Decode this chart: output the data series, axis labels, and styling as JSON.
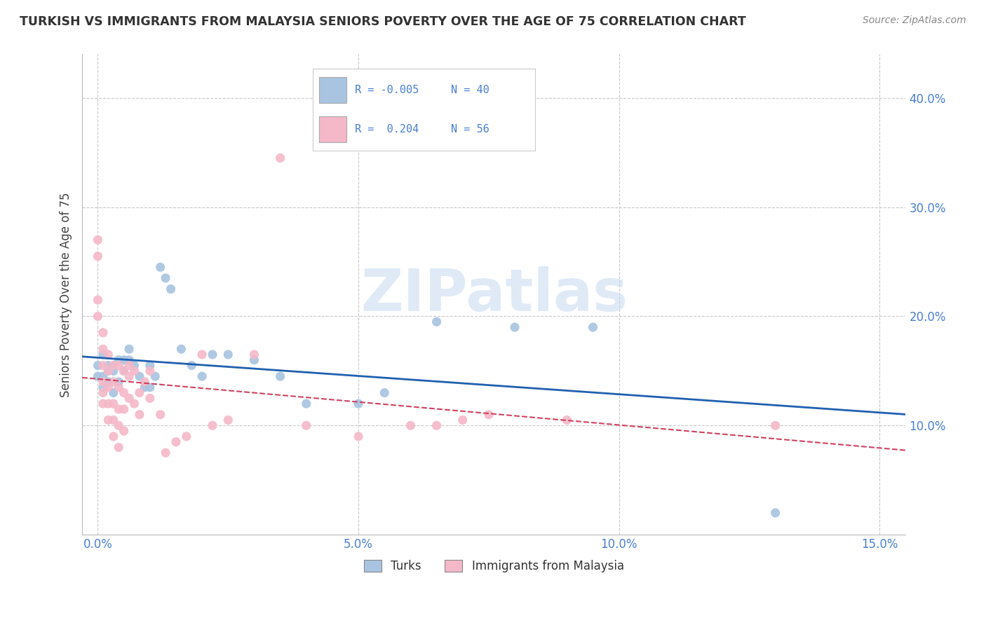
{
  "title": "TURKISH VS IMMIGRANTS FROM MALAYSIA SENIORS POVERTY OVER THE AGE OF 75 CORRELATION CHART",
  "source": "Source: ZipAtlas.com",
  "ylabel": "Seniors Poverty Over the Age of 75",
  "watermark": "ZIPatlas",
  "turks_color": "#a8c4e0",
  "malaysia_color": "#f4b8c8",
  "turks_line_color": "#2060b0",
  "malaysia_line_color": "#d04060",
  "turks_scatter": [
    [
      0.0,
      0.155
    ],
    [
      0.0,
      0.145
    ],
    [
      0.001,
      0.145
    ],
    [
      0.001,
      0.135
    ],
    [
      0.001,
      0.165
    ],
    [
      0.002,
      0.15
    ],
    [
      0.002,
      0.155
    ],
    [
      0.002,
      0.14
    ],
    [
      0.003,
      0.15
    ],
    [
      0.003,
      0.13
    ],
    [
      0.003,
      0.155
    ],
    [
      0.004,
      0.16
    ],
    [
      0.004,
      0.14
    ],
    [
      0.005,
      0.16
    ],
    [
      0.005,
      0.15
    ],
    [
      0.006,
      0.16
    ],
    [
      0.006,
      0.17
    ],
    [
      0.007,
      0.155
    ],
    [
      0.008,
      0.145
    ],
    [
      0.009,
      0.135
    ],
    [
      0.01,
      0.135
    ],
    [
      0.01,
      0.155
    ],
    [
      0.011,
      0.145
    ],
    [
      0.012,
      0.245
    ],
    [
      0.013,
      0.235
    ],
    [
      0.014,
      0.225
    ],
    [
      0.016,
      0.17
    ],
    [
      0.018,
      0.155
    ],
    [
      0.02,
      0.145
    ],
    [
      0.022,
      0.165
    ],
    [
      0.025,
      0.165
    ],
    [
      0.03,
      0.16
    ],
    [
      0.035,
      0.145
    ],
    [
      0.04,
      0.12
    ],
    [
      0.05,
      0.12
    ],
    [
      0.055,
      0.13
    ],
    [
      0.065,
      0.195
    ],
    [
      0.08,
      0.19
    ],
    [
      0.095,
      0.19
    ],
    [
      0.13,
      0.02
    ]
  ],
  "malaysia_scatter": [
    [
      0.0,
      0.27
    ],
    [
      0.0,
      0.255
    ],
    [
      0.0,
      0.215
    ],
    [
      0.0,
      0.2
    ],
    [
      0.001,
      0.185
    ],
    [
      0.001,
      0.17
    ],
    [
      0.001,
      0.155
    ],
    [
      0.001,
      0.14
    ],
    [
      0.001,
      0.13
    ],
    [
      0.001,
      0.12
    ],
    [
      0.002,
      0.165
    ],
    [
      0.002,
      0.15
    ],
    [
      0.002,
      0.135
    ],
    [
      0.002,
      0.12
    ],
    [
      0.002,
      0.105
    ],
    [
      0.003,
      0.155
    ],
    [
      0.003,
      0.14
    ],
    [
      0.003,
      0.12
    ],
    [
      0.003,
      0.105
    ],
    [
      0.003,
      0.09
    ],
    [
      0.004,
      0.155
    ],
    [
      0.004,
      0.135
    ],
    [
      0.004,
      0.115
    ],
    [
      0.004,
      0.1
    ],
    [
      0.004,
      0.08
    ],
    [
      0.005,
      0.15
    ],
    [
      0.005,
      0.13
    ],
    [
      0.005,
      0.115
    ],
    [
      0.005,
      0.095
    ],
    [
      0.006,
      0.155
    ],
    [
      0.006,
      0.145
    ],
    [
      0.006,
      0.125
    ],
    [
      0.007,
      0.15
    ],
    [
      0.007,
      0.12
    ],
    [
      0.008,
      0.13
    ],
    [
      0.008,
      0.11
    ],
    [
      0.009,
      0.14
    ],
    [
      0.01,
      0.15
    ],
    [
      0.01,
      0.125
    ],
    [
      0.012,
      0.11
    ],
    [
      0.013,
      0.075
    ],
    [
      0.015,
      0.085
    ],
    [
      0.017,
      0.09
    ],
    [
      0.02,
      0.165
    ],
    [
      0.022,
      0.1
    ],
    [
      0.025,
      0.105
    ],
    [
      0.03,
      0.165
    ],
    [
      0.035,
      0.345
    ],
    [
      0.04,
      0.1
    ],
    [
      0.05,
      0.09
    ],
    [
      0.06,
      0.1
    ],
    [
      0.065,
      0.1
    ],
    [
      0.07,
      0.105
    ],
    [
      0.075,
      0.11
    ],
    [
      0.09,
      0.105
    ],
    [
      0.13,
      0.1
    ]
  ],
  "xlim": [
    -0.003,
    0.155
  ],
  "ylim": [
    0.0,
    0.44
  ],
  "xticks": [
    0.0,
    0.05,
    0.1,
    0.15
  ],
  "yticks": [
    0.1,
    0.2,
    0.3,
    0.4
  ],
  "xticklabels": [
    "0.0%",
    "5.0%",
    "10.0%",
    "15.0%"
  ],
  "yticklabels": [
    "10.0%",
    "20.0%",
    "30.0%",
    "40.0%"
  ],
  "turks_R": -0.005,
  "turks_N": 40,
  "malaysia_R": 0.204,
  "malaysia_N": 56,
  "bg_color": "#ffffff",
  "grid_color": "#c8c8c8",
  "title_color": "#333333",
  "axis_label_color": "#444444",
  "tick_color": "#4a7fd4"
}
